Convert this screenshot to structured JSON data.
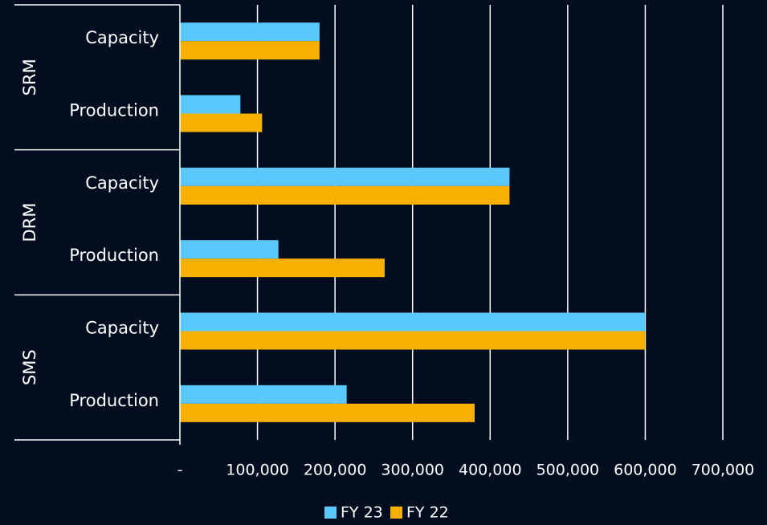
{
  "chart_data": {
    "type": "bar",
    "orientation": "horizontal",
    "groups": [
      {
        "name": "SRM",
        "categories": [
          "Capacity",
          "Production"
        ]
      },
      {
        "name": "DRM",
        "categories": [
          "Capacity",
          "Production"
        ]
      },
      {
        "name": "SMS",
        "categories": [
          "Capacity",
          "Production"
        ]
      }
    ],
    "series": [
      {
        "name": "FY 23",
        "color": "#5bc8fb",
        "values": [
          180000,
          78000,
          425000,
          127000,
          600000,
          215000
        ]
      },
      {
        "name": "FY 22",
        "color": "#f7b000",
        "values": [
          180000,
          106000,
          425000,
          264000,
          600000,
          380000
        ]
      }
    ],
    "xlim": [
      0,
      700000
    ],
    "xticks": [
      0,
      100000,
      200000,
      300000,
      400000,
      500000,
      600000,
      700000
    ],
    "xtick_labels": [
      "-",
      "100,000",
      "200,000",
      "300,000",
      "400,000",
      "500,000",
      "600,000",
      "700,000"
    ],
    "grid": true,
    "legend": "bottom",
    "title": "",
    "xlabel": "",
    "ylabel": ""
  }
}
